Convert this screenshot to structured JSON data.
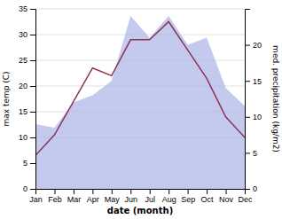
{
  "chart_data": {
    "type": "line",
    "categories": [
      "Jan",
      "Feb",
      "Mar",
      "Apr",
      "May",
      "Jun",
      "Jul",
      "Aug",
      "Sep",
      "Oct",
      "Nov",
      "Dec"
    ],
    "series": [
      {
        "type": "area",
        "axis": "y2",
        "color": "#b0b8e8",
        "values": [
          9.0,
          8.5,
          12.0,
          13.0,
          15.0,
          24.0,
          21.0,
          24.0,
          20.0,
          21.0,
          14.0,
          11.5
        ]
      },
      {
        "type": "line",
        "color": "#8b3355",
        "values": [
          6.5,
          10.5,
          17.0,
          23.5,
          22.0,
          29.0,
          29.0,
          32.5,
          27.0,
          21.5,
          14.0,
          10.0
        ]
      }
    ],
    "x_label": "date (month)",
    "y_label": "max temp (C)",
    "y2_label": "med. precipitation (kg/m2)",
    "ylim": [
      0,
      35
    ],
    "yticks": [
      0,
      5,
      10,
      15,
      20,
      25,
      30,
      35
    ],
    "y2lim": [
      0,
      25
    ],
    "y2ticks": [
      0,
      5,
      10,
      15,
      20
    ],
    "grid": true
  }
}
